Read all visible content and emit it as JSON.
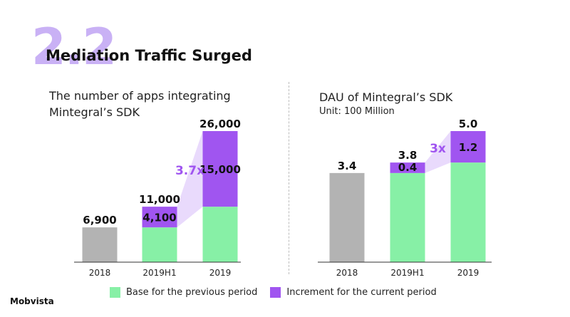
{
  "header": {
    "section_number": "2.2",
    "title": "Mediation Traffic Surged"
  },
  "colors": {
    "base": "#87f0a6",
    "increment": "#a055f0",
    "previous": "#b3b3b3",
    "growth_band": "#e9dafc",
    "growth_text": "#a055f0",
    "section_number": "#c9b1f5"
  },
  "legend": {
    "base_label": "Base for the previous period",
    "increment_label": "Increment for the current period"
  },
  "logo": {
    "text": "Mobvista"
  },
  "chart_data": [
    {
      "type": "bar",
      "stacked": true,
      "title": "The number of apps integrating Mintegral’s SDK",
      "title_lines": [
        "The number of apps integrating",
        "Mintegral’s SDK"
      ],
      "categories": [
        "2018",
        "2019H1",
        "2019"
      ],
      "series": [
        {
          "name": "Base for the previous period",
          "values": [
            6900,
            6900,
            11000
          ]
        },
        {
          "name": "Increment for the current period",
          "values": [
            0,
            4100,
            15000
          ]
        }
      ],
      "totals": [
        6900,
        11000,
        26000
      ],
      "total_labels": [
        "6,900",
        "11,000",
        "26,000"
      ],
      "increment_labels": [
        "",
        "4,100",
        "15,000"
      ],
      "growth_label": "3.7x",
      "grid": false
    },
    {
      "type": "bar",
      "stacked": true,
      "title": "DAU of Mintegral’s SDK",
      "subtitle": "Unit: 100 Million",
      "categories": [
        "2018",
        "2019H1",
        "2019"
      ],
      "series": [
        {
          "name": "Base for the previous period",
          "values": [
            3.4,
            3.4,
            3.8
          ]
        },
        {
          "name": "Increment for the current period",
          "values": [
            0,
            0.4,
            1.2
          ]
        }
      ],
      "totals": [
        3.4,
        3.8,
        5.0
      ],
      "total_labels": [
        "3.4",
        "3.8",
        "5.0"
      ],
      "increment_labels": [
        "",
        "0.4",
        "1.2"
      ],
      "growth_label": "3x",
      "grid": false
    }
  ]
}
